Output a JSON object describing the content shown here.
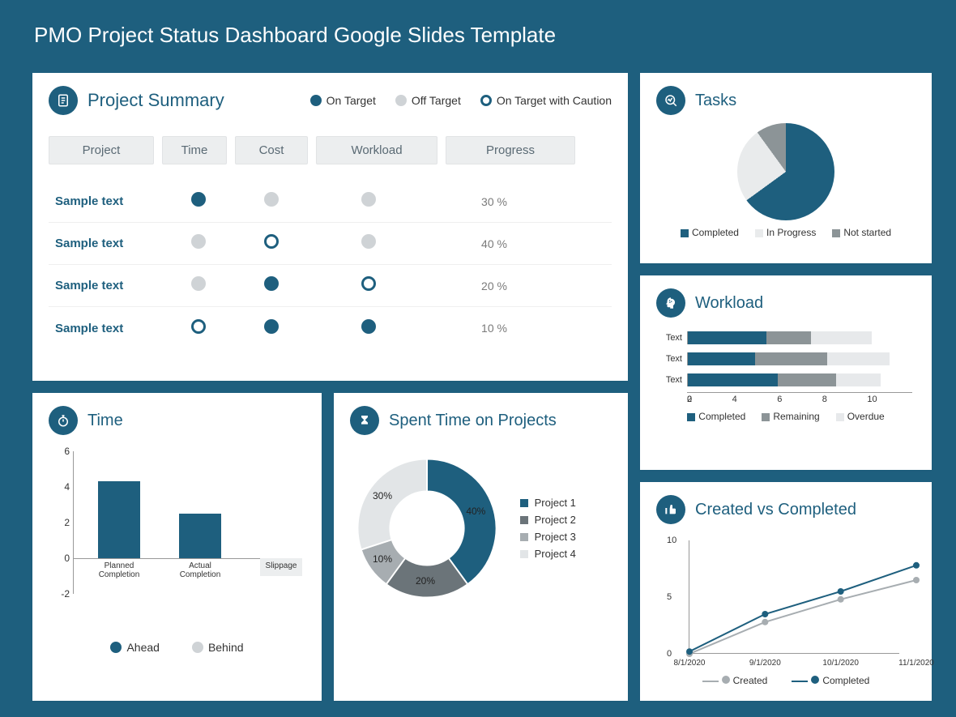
{
  "page": {
    "title": "PMO Project Status Dashboard Google Slides Template",
    "bg": "#1e5f7e"
  },
  "colors": {
    "primary": "#1e5f7e",
    "grey": "#cfd3d6",
    "lightgrey": "#e9ebec",
    "midgrey": "#8c9497",
    "darkgrey": "#6b7479",
    "axis": "#999999",
    "white": "#ffffff"
  },
  "summary": {
    "title": "Project Summary",
    "legend": {
      "on": "On Target",
      "off": "Off Target",
      "caution": "On Target with Caution"
    },
    "columns": {
      "project": "Project",
      "time": "Time",
      "cost": "Cost",
      "workload": "Workload",
      "progress": "Progress"
    },
    "rows": [
      {
        "label": "Sample text",
        "time": "solid",
        "cost": "grey",
        "workload": "grey",
        "progress": "30 %"
      },
      {
        "label": "Sample text",
        "time": "grey",
        "cost": "ring",
        "workload": "grey",
        "progress": "40 %"
      },
      {
        "label": "Sample text",
        "time": "grey",
        "cost": "solid",
        "workload": "ring",
        "progress": "20 %"
      },
      {
        "label": "Sample text",
        "time": "ring",
        "cost": "solid",
        "workload": "solid",
        "progress": "10 %"
      }
    ]
  },
  "tasks": {
    "title": "Tasks",
    "type": "pie",
    "slices": [
      {
        "label": "Completed",
        "value": 65,
        "color": "#1e5f7e"
      },
      {
        "label": "In Progress",
        "value": 25,
        "color": "#e9ebec"
      },
      {
        "label": "Not started",
        "value": 10,
        "color": "#8c9497"
      }
    ]
  },
  "workload": {
    "title": "Workload",
    "type": "stacked-hbar",
    "xmax": 10,
    "xtick_step": 2,
    "rows": [
      {
        "label": "Text",
        "completed": 3.5,
        "remaining": 2.0,
        "overdue": 2.7
      },
      {
        "label": "Text",
        "completed": 3.0,
        "remaining": 3.2,
        "overdue": 2.8
      },
      {
        "label": "Text",
        "completed": 4.0,
        "remaining": 2.6,
        "overdue": 2.0
      }
    ],
    "series": [
      {
        "label": "Completed",
        "color": "#1e5f7e"
      },
      {
        "label": "Remaining",
        "color": "#8c9497"
      },
      {
        "label": "Overdue",
        "color": "#e7e9eb"
      }
    ]
  },
  "time": {
    "title": "Time",
    "type": "bar",
    "ylim": [
      -2,
      6
    ],
    "ytick_step": 2,
    "bars": [
      {
        "label": "Planned Completion",
        "value": 4.3,
        "color": "#1e5f7e"
      },
      {
        "label": "Actual Completion",
        "value": 2.5,
        "color": "#1e5f7e"
      },
      {
        "label": "Slippage",
        "value": -1.0,
        "color": "#eceeef"
      }
    ],
    "legend": {
      "ahead": "Ahead",
      "behind": "Behind"
    }
  },
  "spent": {
    "title": "Spent Time on Projects",
    "type": "donut",
    "slices": [
      {
        "label": "Project 1",
        "value": 40,
        "color": "#1e5f7e",
        "text": "40%"
      },
      {
        "label": "Project 2",
        "value": 20,
        "color": "#6b7479",
        "text": "20%"
      },
      {
        "label": "Project 3",
        "value": 10,
        "color": "#a7adb1",
        "text": "10%"
      },
      {
        "label": "Project 4",
        "value": 30,
        "color": "#e2e5e7",
        "text": "30%"
      }
    ]
  },
  "cvc": {
    "title": "Created vs Completed",
    "type": "line",
    "ylim": [
      0,
      10
    ],
    "yticks": [
      0,
      5,
      10
    ],
    "x": [
      "8/1/2020",
      "9/1/2020",
      "10/1/2020",
      "11/1/2020"
    ],
    "series": [
      {
        "label": "Created",
        "color": "#a7adb1",
        "values": [
          0,
          2.8,
          4.8,
          6.5
        ]
      },
      {
        "label": "Completed",
        "color": "#1e5f7e",
        "values": [
          0.2,
          3.5,
          5.5,
          7.8
        ]
      }
    ]
  }
}
